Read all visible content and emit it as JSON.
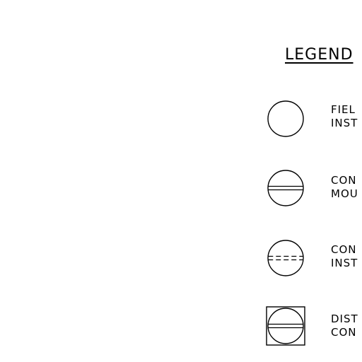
{
  "legend": {
    "title": "LEGEND",
    "entries": [
      {
        "symbol": "circle-icon",
        "line1": "FIEL",
        "line2": "INST"
      },
      {
        "symbol": "circle-solid-line-icon",
        "line1": "CON",
        "line2": "MOU"
      },
      {
        "symbol": "circle-dashed-line-icon",
        "line1": "CON",
        "line2": "INST"
      },
      {
        "symbol": "boxed-circle-line-icon",
        "line1": "DIST",
        "line2": "CON"
      }
    ]
  }
}
